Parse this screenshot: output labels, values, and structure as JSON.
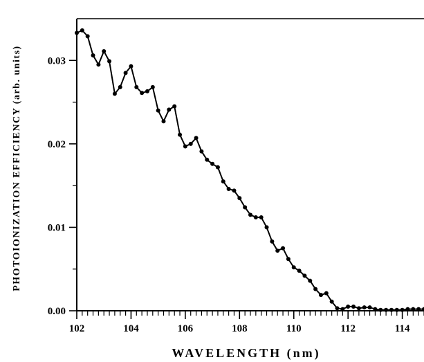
{
  "chart_data": {
    "type": "line",
    "title": "",
    "xlabel": "WAVELENGTH (nm)",
    "ylabel": "PHOTOIONIZATION EFFICIENCY (arb. units)",
    "xlim": [
      102,
      114.8
    ],
    "ylim": [
      0,
      0.035
    ],
    "x_ticks": [
      102,
      104,
      106,
      108,
      110,
      112,
      114
    ],
    "x_tick_labels": [
      "102",
      "104",
      "106",
      "108",
      "110",
      "112",
      "114"
    ],
    "y_ticks": [
      0.0,
      0.01,
      0.02,
      0.03
    ],
    "y_tick_labels": [
      "0.00",
      "0.01",
      "0.02",
      "0.03"
    ],
    "grid": false,
    "legend": "none",
    "series": [
      {
        "color": "#000000",
        "marker": "circle",
        "x": [
          102.0,
          102.2,
          102.4,
          102.6,
          102.8,
          103.0,
          103.2,
          103.4,
          103.6,
          103.8,
          104.0,
          104.2,
          104.4,
          104.6,
          104.8,
          105.0,
          105.2,
          105.4,
          105.6,
          105.8,
          106.0,
          106.2,
          106.4,
          106.6,
          106.8,
          107.0,
          107.2,
          107.4,
          107.6,
          107.8,
          108.0,
          108.2,
          108.4,
          108.6,
          108.8,
          109.0,
          109.2,
          109.4,
          109.6,
          109.8,
          110.0,
          110.2,
          110.4,
          110.6,
          110.8,
          111.0,
          111.2,
          111.4,
          111.6,
          111.8,
          112.0,
          112.2,
          112.4,
          112.6,
          112.8,
          113.0,
          113.2,
          113.4,
          113.6,
          113.8,
          114.0,
          114.2,
          114.4,
          114.6,
          114.8
        ],
        "y": [
          0.0333,
          0.0336,
          0.0329,
          0.0306,
          0.0295,
          0.0311,
          0.0299,
          0.026,
          0.0268,
          0.0285,
          0.0293,
          0.0268,
          0.0261,
          0.0263,
          0.0268,
          0.024,
          0.0227,
          0.0241,
          0.0245,
          0.0211,
          0.0197,
          0.02,
          0.0207,
          0.0191,
          0.0181,
          0.0176,
          0.0172,
          0.0155,
          0.0146,
          0.0144,
          0.0135,
          0.0124,
          0.0115,
          0.0112,
          0.0112,
          0.01,
          0.0083,
          0.0072,
          0.0075,
          0.0062,
          0.0052,
          0.0048,
          0.0042,
          0.0036,
          0.0026,
          0.0019,
          0.0021,
          0.0011,
          0.0003,
          0.0002,
          0.0005,
          0.0005,
          0.0003,
          0.0004,
          0.0004,
          0.0002,
          0.0001,
          0.0001,
          0.0001,
          0.0001,
          0.0001,
          0.0002,
          0.0002,
          0.0002,
          0.0002
        ]
      }
    ]
  }
}
